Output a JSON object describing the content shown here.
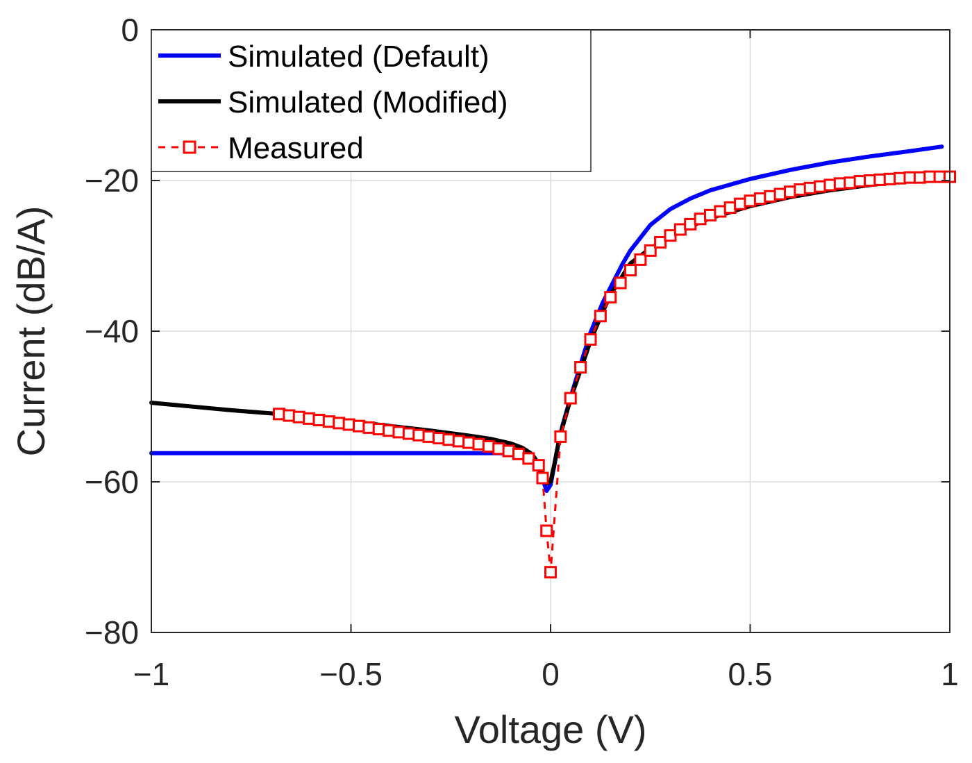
{
  "chart_data": {
    "type": "line",
    "title": "",
    "xlabel": "Voltage (V)",
    "ylabel": "Current (dB/A)",
    "xlim": [
      -1,
      1
    ],
    "ylim": [
      -80,
      0
    ],
    "xticks": [
      -1,
      -0.5,
      0,
      0.5,
      1
    ],
    "xtick_labels": [
      "−1",
      "−0.5",
      "0",
      "0.5",
      "1"
    ],
    "yticks": [
      0,
      -20,
      -40,
      -60,
      -80
    ],
    "ytick_labels": [
      "0",
      "−20",
      "−40",
      "−60",
      "−80"
    ],
    "grid": true,
    "legend_position": "top-left",
    "series": [
      {
        "name": "Simulated (Default)",
        "color": "#0000ff",
        "style": "solid",
        "x": [
          -1,
          -0.8,
          -0.6,
          -0.4,
          -0.2,
          -0.1,
          -0.07,
          -0.05,
          -0.04,
          -0.03,
          -0.02,
          -0.01,
          0,
          0.01,
          0.02,
          0.03,
          0.05,
          0.08,
          0.1,
          0.13,
          0.15,
          0.18,
          0.2,
          0.25,
          0.3,
          0.35,
          0.4,
          0.5,
          0.6,
          0.7,
          0.8,
          0.9,
          0.98
        ],
        "y": [
          -56.2,
          -56.2,
          -56.2,
          -56.2,
          -56.2,
          -56.2,
          -56.4,
          -56.8,
          -57.3,
          -58.2,
          -59.6,
          -61.2,
          -60.4,
          -57.6,
          -54.8,
          -52.5,
          -48.8,
          -43.6,
          -40.2,
          -36.3,
          -34.2,
          -31.1,
          -29.3,
          -25.9,
          -23.8,
          -22.4,
          -21.3,
          -19.8,
          -18.6,
          -17.6,
          -16.8,
          -16.1,
          -15.5
        ]
      },
      {
        "name": "Simulated (Modified)",
        "color": "#000000",
        "style": "solid",
        "x": [
          -1,
          -0.8,
          -0.68,
          -0.6,
          -0.5,
          -0.4,
          -0.3,
          -0.2,
          -0.15,
          -0.1,
          -0.07,
          -0.05,
          -0.04,
          -0.03,
          -0.02,
          -0.01,
          0,
          0.01,
          0.02,
          0.03,
          0.05,
          0.08,
          0.1,
          0.13,
          0.15,
          0.2,
          0.25,
          0.3,
          0.35,
          0.4,
          0.5,
          0.6,
          0.7,
          0.8,
          0.9,
          0.98
        ],
        "y": [
          -49.5,
          -50.5,
          -51.0,
          -51.4,
          -52.0,
          -52.6,
          -53.2,
          -53.9,
          -54.3,
          -54.9,
          -55.5,
          -56.2,
          -56.8,
          -57.7,
          -58.8,
          -60.2,
          -60.0,
          -57.5,
          -54.8,
          -52.7,
          -49.0,
          -44.4,
          -41.3,
          -37.5,
          -35.2,
          -31.0,
          -29.0,
          -27.5,
          -26.1,
          -25.0,
          -23.4,
          -22.2,
          -21.3,
          -20.6,
          -20.0,
          -19.6
        ]
      },
      {
        "name": "Measured",
        "color": "#ff0000",
        "style": "dashed",
        "marker": "square",
        "x": [
          -0.68,
          -0.655,
          -0.63,
          -0.605,
          -0.58,
          -0.555,
          -0.53,
          -0.505,
          -0.48,
          -0.455,
          -0.43,
          -0.405,
          -0.38,
          -0.355,
          -0.33,
          -0.305,
          -0.28,
          -0.255,
          -0.23,
          -0.205,
          -0.18,
          -0.155,
          -0.13,
          -0.105,
          -0.08,
          -0.055,
          -0.03,
          -0.02,
          -0.01,
          0.0,
          0.025,
          0.05,
          0.075,
          0.1,
          0.125,
          0.15,
          0.175,
          0.2,
          0.225,
          0.25,
          0.275,
          0.3,
          0.325,
          0.35,
          0.375,
          0.4,
          0.425,
          0.45,
          0.475,
          0.5,
          0.525,
          0.55,
          0.575,
          0.6,
          0.625,
          0.65,
          0.675,
          0.7,
          0.725,
          0.75,
          0.775,
          0.8,
          0.825,
          0.85,
          0.875,
          0.9,
          0.925,
          0.95,
          0.975,
          1.0
        ],
        "y": [
          -51.0,
          -51.2,
          -51.4,
          -51.6,
          -51.8,
          -52.0,
          -52.2,
          -52.4,
          -52.6,
          -52.8,
          -53.0,
          -53.2,
          -53.4,
          -53.6,
          -53.8,
          -54.0,
          -54.2,
          -54.4,
          -54.6,
          -54.8,
          -55.0,
          -55.3,
          -55.6,
          -55.9,
          -56.3,
          -56.9,
          -57.8,
          -59.5,
          -66.5,
          -72.0,
          -54.0,
          -48.9,
          -44.8,
          -41.1,
          -38.0,
          -35.5,
          -33.6,
          -31.9,
          -30.5,
          -29.3,
          -28.2,
          -27.3,
          -26.5,
          -25.8,
          -25.1,
          -24.6,
          -24.1,
          -23.6,
          -23.1,
          -22.7,
          -22.4,
          -22.1,
          -21.8,
          -21.5,
          -21.2,
          -21.0,
          -20.8,
          -20.6,
          -20.4,
          -20.3,
          -20.1,
          -20.0,
          -19.9,
          -19.8,
          -19.7,
          -19.6,
          -19.6,
          -19.5,
          -19.5,
          -19.5
        ]
      }
    ]
  }
}
